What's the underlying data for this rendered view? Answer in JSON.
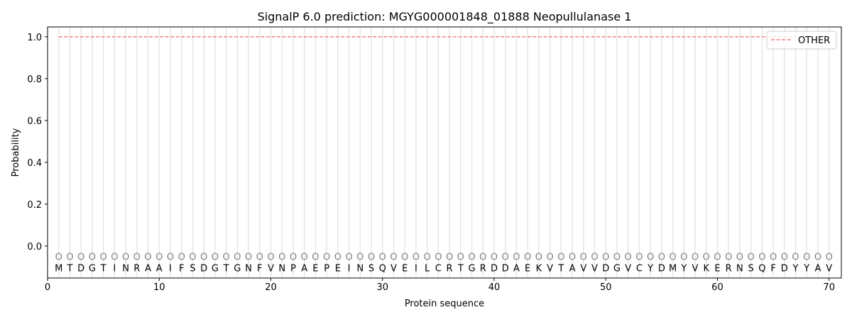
{
  "chart_data": {
    "type": "line",
    "title": "SignalP 6.0 prediction: MGYG000001848_01888 Neopullulanase 1",
    "xlabel": "Protein sequence",
    "ylabel": "Probability",
    "xlim": [
      0,
      71.1
    ],
    "ylim": [
      -0.153,
      1.047
    ],
    "xticks": [
      0,
      10,
      20,
      30,
      40,
      50,
      60,
      70
    ],
    "yticks": [
      0.0,
      0.2,
      0.4,
      0.6,
      0.8,
      1.0
    ],
    "ytick_labels": [
      "0.0",
      "0.2",
      "0.4",
      "0.6",
      "0.8",
      "1.0"
    ],
    "grid": "vertical lines at each residue",
    "legend_position": "top-right",
    "sequence": "MTDGTINRAAIFSDGTGNFVNPAEPEINSQVEILCRTGRDDAEKVTAVVDGVCYDMYVKERNSQFDYYAV",
    "residue_label_marker": "O",
    "series": [
      {
        "name": "OTHER",
        "color": "#f08080",
        "style": "dashed",
        "x_range": [
          1,
          70
        ],
        "value": 1.0
      }
    ]
  }
}
